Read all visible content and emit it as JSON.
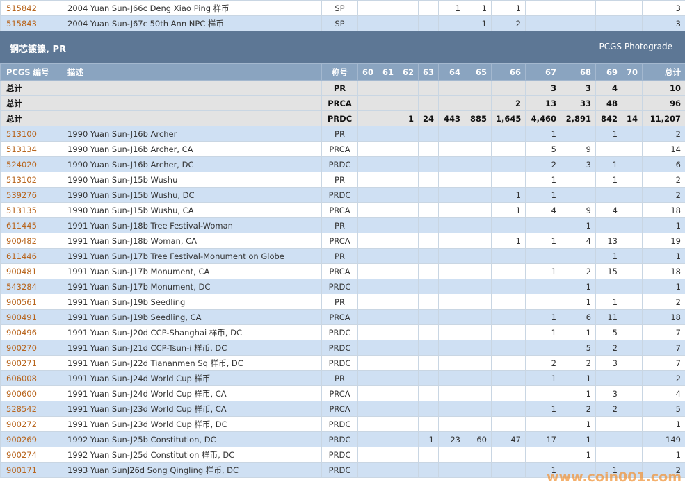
{
  "top_rows": [
    [
      "515842",
      "2004 Yuan Sun-J66c Deng Xiao Ping 样币",
      "SP",
      null,
      null,
      null,
      null,
      1,
      1,
      1,
      null,
      null,
      null,
      null,
      3
    ],
    [
      "515843",
      "2004 Yuan Sun-J67c 50th Ann NPC 样币",
      "SP",
      null,
      null,
      null,
      null,
      null,
      1,
      2,
      null,
      null,
      null,
      null,
      3
    ]
  ],
  "section": {
    "title": "钢芯镀镍, PR",
    "subtitle": "PCGS Photograde"
  },
  "header": [
    "PCGS 编号",
    "描述",
    "称号",
    60,
    61,
    62,
    63,
    64,
    65,
    66,
    67,
    68,
    69,
    70,
    "总计"
  ],
  "total_rows": [
    [
      "总计",
      null,
      "PR",
      null,
      null,
      null,
      null,
      null,
      null,
      null,
      3,
      3,
      4,
      null,
      10
    ],
    [
      "总计",
      null,
      "PRCA",
      null,
      null,
      null,
      null,
      null,
      null,
      2,
      13,
      33,
      48,
      null,
      96
    ],
    [
      "总计",
      null,
      "PRDC",
      null,
      null,
      1,
      24,
      443,
      885,
      "1,645",
      "4,460",
      "2,891",
      842,
      14,
      "11,207"
    ]
  ],
  "rows": [
    [
      "513100",
      "1990 Yuan Sun-J16b Archer",
      "PR",
      null,
      null,
      null,
      null,
      null,
      null,
      null,
      1,
      null,
      1,
      null,
      2
    ],
    [
      "513134",
      "1990 Yuan Sun-J16b Archer, CA",
      "PRCA",
      null,
      null,
      null,
      null,
      null,
      null,
      null,
      5,
      9,
      null,
      null,
      14
    ],
    [
      "524020",
      "1990 Yuan Sun-J16b Archer, DC",
      "PRDC",
      null,
      null,
      null,
      null,
      null,
      null,
      null,
      2,
      3,
      1,
      null,
      6
    ],
    [
      "513102",
      "1990 Yuan Sun-J15b Wushu",
      "PR",
      null,
      null,
      null,
      null,
      null,
      null,
      null,
      1,
      null,
      1,
      null,
      2
    ],
    [
      "539276",
      "1990 Yuan Sun-J15b Wushu, DC",
      "PRDC",
      null,
      null,
      null,
      null,
      null,
      null,
      1,
      1,
      null,
      null,
      null,
      2
    ],
    [
      "513135",
      "1990 Yuan Sun-J15b Wushu, CA",
      "PRCA",
      null,
      null,
      null,
      null,
      null,
      null,
      1,
      4,
      9,
      4,
      null,
      18
    ],
    [
      "611445",
      "1991 Yuan Sun-J18b Tree Festival-Woman",
      "PR",
      null,
      null,
      null,
      null,
      null,
      null,
      null,
      null,
      1,
      null,
      null,
      1
    ],
    [
      "900482",
      "1991 Yuan Sun-J18b Woman, CA",
      "PRCA",
      null,
      null,
      null,
      null,
      null,
      null,
      1,
      1,
      4,
      13,
      null,
      19
    ],
    [
      "611446",
      "1991 Yuan Sun-J17b Tree Festival-Monument on Globe",
      "PR",
      null,
      null,
      null,
      null,
      null,
      null,
      null,
      null,
      null,
      1,
      null,
      1
    ],
    [
      "900481",
      "1991 Yuan Sun-J17b Monument, CA",
      "PRCA",
      null,
      null,
      null,
      null,
      null,
      null,
      null,
      1,
      2,
      15,
      null,
      18
    ],
    [
      "543284",
      "1991 Yuan Sun-J17b Monument, DC",
      "PRDC",
      null,
      null,
      null,
      null,
      null,
      null,
      null,
      null,
      1,
      null,
      null,
      1
    ],
    [
      "900561",
      "1991 Yuan Sun-J19b Seedling",
      "PR",
      null,
      null,
      null,
      null,
      null,
      null,
      null,
      null,
      1,
      1,
      null,
      2
    ],
    [
      "900491",
      "1991 Yuan Sun-J19b Seedling, CA",
      "PRCA",
      null,
      null,
      null,
      null,
      null,
      null,
      null,
      1,
      6,
      11,
      null,
      18
    ],
    [
      "900496",
      "1991 Yuan Sun-J20d CCP-Shanghai 样币, DC",
      "PRDC",
      null,
      null,
      null,
      null,
      null,
      null,
      null,
      1,
      1,
      5,
      null,
      7
    ],
    [
      "900270",
      "1991 Yuan Sun-J21d CCP-Tsun-i 样币, DC",
      "PRDC",
      null,
      null,
      null,
      null,
      null,
      null,
      null,
      null,
      5,
      2,
      null,
      7
    ],
    [
      "900271",
      "1991 Yuan Sun-J22d Tiananmen Sq 样币, DC",
      "PRDC",
      null,
      null,
      null,
      null,
      null,
      null,
      null,
      2,
      2,
      3,
      null,
      7
    ],
    [
      "606008",
      "1991 Yuan Sun-J24d World Cup 样币",
      "PR",
      null,
      null,
      null,
      null,
      null,
      null,
      null,
      1,
      1,
      null,
      null,
      2
    ],
    [
      "900600",
      "1991 Yuan Sun-J24d World Cup 样币, CA",
      "PRCA",
      null,
      null,
      null,
      null,
      null,
      null,
      null,
      null,
      1,
      3,
      null,
      4
    ],
    [
      "528542",
      "1991 Yuan Sun-J23d World Cup 样币, CA",
      "PRCA",
      null,
      null,
      null,
      null,
      null,
      null,
      null,
      1,
      2,
      2,
      null,
      5
    ],
    [
      "900272",
      "1991 Yuan Sun-J23d World Cup 样币, DC",
      "PRDC",
      null,
      null,
      null,
      null,
      null,
      null,
      null,
      null,
      1,
      null,
      null,
      1
    ],
    [
      "900269",
      "1992 Yuan Sun-J25b Constitution, DC",
      "PRDC",
      null,
      null,
      null,
      1,
      23,
      60,
      47,
      17,
      1,
      null,
      null,
      149
    ],
    [
      "900274",
      "1992 Yuan Sun-J25d Constitution 样币, DC",
      "PRDC",
      null,
      null,
      null,
      null,
      null,
      null,
      null,
      null,
      1,
      null,
      null,
      1
    ],
    [
      "900171",
      "1993 Yuan SunJ26d Song Qingling 样币, DC",
      "PRDC",
      null,
      null,
      null,
      null,
      null,
      null,
      null,
      1,
      null,
      1,
      null,
      2
    ]
  ],
  "watermark": "www.coin001.com"
}
